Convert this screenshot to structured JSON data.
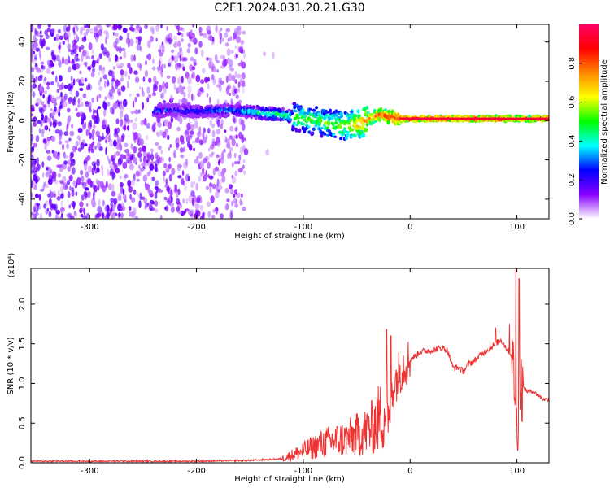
{
  "title": "C2E1.2024.031.20.21.G30",
  "chart_data": [
    {
      "type": "heatmap",
      "xlabel": "Height of straight line (km)",
      "ylabel": "Frequency (Hz)",
      "xlim": [
        -355,
        130
      ],
      "ylim": [
        -50,
        49
      ],
      "xticks": [
        -300,
        -200,
        -100,
        0,
        100
      ],
      "yticks": [
        -40,
        -20,
        0,
        20,
        40
      ],
      "xtick_labels": [
        "-300",
        "-200",
        "-100",
        "0",
        "100"
      ],
      "ytick_labels": [
        "-40",
        "-20",
        "0",
        "20",
        "40"
      ],
      "colorbar": {
        "label": "Normalized spectral amplitude",
        "range": [
          0,
          1
        ],
        "ticks": [
          0.0,
          0.2,
          0.4,
          0.6,
          0.8
        ],
        "tick_labels": [
          "0.0",
          "0.2",
          "0.4",
          "0.6",
          "0.8"
        ],
        "colormap": [
          "#ffffff",
          "#8800ff",
          "#0000ff",
          "#00ffff",
          "#00ff00",
          "#ffff00",
          "#ff8800",
          "#ff0000",
          "#ff0066"
        ]
      },
      "noise_region_x": [
        -355,
        -155
      ],
      "signal_ridge": {
        "x": [
          -240,
          -200,
          -160,
          -140,
          -120,
          -100,
          -80,
          -60,
          -45,
          -30,
          -20,
          -10,
          0,
          20,
          50,
          85,
          95,
          100,
          130
        ],
        "freq": [
          5,
          5,
          5,
          4,
          3,
          1,
          -1,
          -3,
          -1,
          3,
          2,
          1,
          1,
          1,
          1,
          1,
          1,
          1,
          1
        ],
        "amplitude": [
          0.35,
          0.35,
          0.4,
          0.5,
          0.55,
          0.6,
          0.6,
          0.65,
          0.8,
          0.85,
          0.9,
          0.95,
          0.95,
          0.95,
          0.95,
          0.95,
          0.9,
          0.85,
          0.95
        ]
      }
    },
    {
      "type": "line",
      "xlabel": "Height of straight line (km)",
      "ylabel": "SNR (10 * v/v)",
      "y_multiplier": "(x10⁴)",
      "xlim": [
        -355,
        130
      ],
      "ylim": [
        0,
        2.45
      ],
      "xticks": [
        -300,
        -200,
        -100,
        0,
        100
      ],
      "yticks": [
        0.0,
        0.5,
        1.0,
        1.5,
        2.0
      ],
      "xtick_labels": [
        "-300",
        "-200",
        "-100",
        "0",
        "100"
      ],
      "ytick_labels": [
        "0.0",
        "0.5",
        "1.0",
        "1.5",
        "2.0"
      ],
      "color": "#ee3333",
      "series": [
        {
          "x": [
            -355,
            -300,
            -250,
            -200,
            -150,
            -120,
            -110,
            -100,
            -90,
            -80,
            -70,
            -60,
            -50,
            -40,
            -35,
            -30,
            -25,
            -22,
            -20,
            -18,
            -15,
            -10,
            -5,
            0,
            5,
            10,
            20,
            30,
            35,
            40,
            45,
            50,
            55,
            60,
            65,
            70,
            75,
            80,
            85,
            90,
            95,
            98,
            100,
            103,
            105,
            110,
            115,
            120,
            125,
            130
          ],
          "y": [
            0.02,
            0.02,
            0.02,
            0.02,
            0.03,
            0.05,
            0.1,
            0.15,
            0.2,
            0.25,
            0.28,
            0.3,
            0.35,
            0.4,
            0.45,
            0.55,
            0.6,
            0.7,
            0.4,
            0.8,
            1.0,
            1.15,
            1.25,
            1.3,
            1.35,
            1.4,
            1.42,
            1.45,
            1.42,
            1.2,
            1.2,
            1.15,
            1.25,
            1.28,
            1.35,
            1.4,
            1.45,
            1.5,
            1.55,
            1.45,
            1.35,
            1.0,
            0.4,
            1.0,
            0.95,
            0.9,
            0.9,
            0.85,
            0.8,
            0.8
          ],
          "spikes": [
            {
              "x": -22,
              "y": 1.68
            },
            {
              "x": -18,
              "y": 1.6
            },
            {
              "x": 80,
              "y": 1.7
            },
            {
              "x": 93,
              "y": 1.75
            },
            {
              "x": 99,
              "y": 2.45
            },
            {
              "x": 102,
              "y": 2.32
            }
          ]
        }
      ]
    }
  ]
}
